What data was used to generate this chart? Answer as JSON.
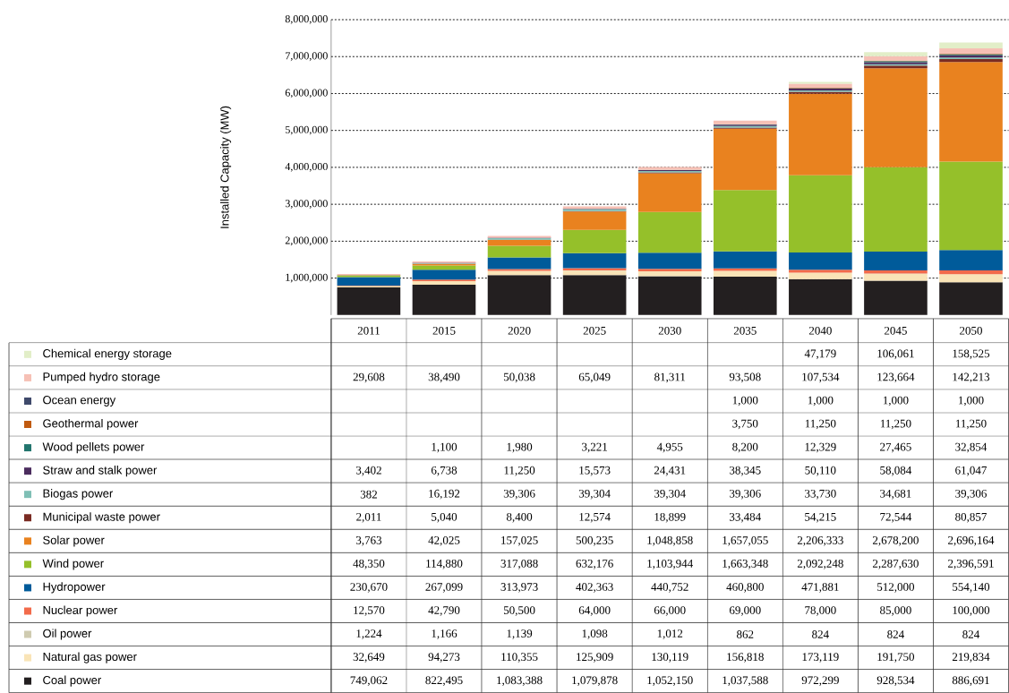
{
  "chart_data": {
    "type": "bar",
    "stacked": true,
    "ylabel": "Installed Capacity (MW)",
    "categories": [
      "2011",
      "2015",
      "2020",
      "2025",
      "2030",
      "2035",
      "2040",
      "2045",
      "2050"
    ],
    "ylim": [
      0,
      8000000
    ],
    "yticks": [
      {
        "value": 1000000,
        "label": "1,000,000"
      },
      {
        "value": 2000000,
        "label": "2,000,000"
      },
      {
        "value": 3000000,
        "label": "3,000,000"
      },
      {
        "value": 4000000,
        "label": "4,000,000"
      },
      {
        "value": 5000000,
        "label": "5,000,000"
      },
      {
        "value": 6000000,
        "label": "6,000,000"
      },
      {
        "value": 7000000,
        "label": "7,000,000"
      },
      {
        "value": 8000000,
        "label": "8,000,000"
      }
    ],
    "grid": "y",
    "legend": "bottom",
    "series": [
      {
        "name": "Coal power",
        "color": "#231f20",
        "values": [
          749062,
          822495,
          1083388,
          1079878,
          1052150,
          1037588,
          972299,
          928534,
          886691
        ],
        "value_labels": [
          "749,062",
          "822,495",
          "1,083,388",
          "1,079,878",
          "1,052,150",
          "1,037,588",
          "972,299",
          "928,534",
          "886,691"
        ]
      },
      {
        "name": "Natural gas power",
        "color": "#f9e4b7",
        "values": [
          32649,
          94273,
          110355,
          125909,
          130119,
          156818,
          173119,
          191750,
          219834
        ],
        "value_labels": [
          "32,649",
          "94,273",
          "110,355",
          "125,909",
          "130,119",
          "156,818",
          "173,119",
          "191,750",
          "219,834"
        ]
      },
      {
        "name": "Oil power",
        "color": "#cfcbb0",
        "values": [
          1224,
          1166,
          1139,
          1098,
          1012,
          862,
          824,
          824,
          824
        ],
        "value_labels": [
          "1,224",
          "1,166",
          "1,139",
          "1,098",
          "1,012",
          "862",
          "824",
          "824",
          "824"
        ]
      },
      {
        "name": "Nuclear power",
        "color": "#f26b4b",
        "values": [
          12570,
          42790,
          50500,
          64000,
          66000,
          69000,
          78000,
          85000,
          100000
        ],
        "value_labels": [
          "12,570",
          "42,790",
          "50,500",
          "64,000",
          "66,000",
          "69,000",
          "78,000",
          "85,000",
          "100,000"
        ]
      },
      {
        "name": "Hydropower",
        "color": "#005b9a",
        "values": [
          230670,
          267099,
          313973,
          402363,
          440752,
          460800,
          471881,
          512000,
          554140
        ],
        "value_labels": [
          "230,670",
          "267,099",
          "313,973",
          "402,363",
          "440,752",
          "460,800",
          "471,881",
          "512,000",
          "554,140"
        ]
      },
      {
        "name": "Wind power",
        "color": "#95c02a",
        "values": [
          48350,
          114880,
          317088,
          632176,
          1103944,
          1663348,
          2092248,
          2287630,
          2396591
        ],
        "value_labels": [
          "48,350",
          "114,880",
          "317,088",
          "632,176",
          "1,103,944",
          "1,663,348",
          "2,092,248",
          "2,287,630",
          "2,396,591"
        ]
      },
      {
        "name": "Solar power",
        "color": "#e9821f",
        "values": [
          3763,
          42025,
          157025,
          500235,
          1048858,
          1657055,
          2206333,
          2678200,
          2696164
        ],
        "value_labels": [
          "3,763",
          "42,025",
          "157,025",
          "500,235",
          "1,048,858",
          "1,657,055",
          "2,206,333",
          "2,678,200",
          "2,696,164"
        ]
      },
      {
        "name": "Municipal waste  power",
        "color": "#7a2b22",
        "values": [
          2011,
          5040,
          8400,
          12574,
          18899,
          33484,
          54215,
          72544,
          80857
        ],
        "value_labels": [
          "2,011",
          "5,040",
          "8,400",
          "12,574",
          "18,899",
          "33,484",
          "54,215",
          "72,544",
          "80,857"
        ]
      },
      {
        "name": "Biogas power",
        "color": "#7fbfb5",
        "values": [
          382,
          16192,
          39306,
          39304,
          39304,
          39306,
          33730,
          34681,
          39306
        ],
        "value_labels": [
          "382",
          "16,192",
          "39,306",
          "39,304",
          "39,304",
          "39,306",
          "33,730",
          "34,681",
          "39,306"
        ]
      },
      {
        "name": "Straw and stalk power",
        "color": "#4b2c5e",
        "values": [
          3402,
          6738,
          11250,
          15573,
          24431,
          38345,
          50110,
          58084,
          61047
        ],
        "value_labels": [
          "3,402",
          "6,738",
          "11,250",
          "15,573",
          "24,431",
          "38,345",
          "50,110",
          "58,084",
          "61,047"
        ]
      },
      {
        "name": "Wood pellets power",
        "color": "#22756e",
        "values": [
          null,
          1100,
          1980,
          3221,
          4955,
          8200,
          12329,
          27465,
          32854
        ],
        "value_labels": [
          null,
          "1,100",
          "1,980",
          "3,221",
          "4,955",
          "8,200",
          "12,329",
          "27,465",
          "32,854"
        ]
      },
      {
        "name": "Geothermal power",
        "color": "#c05a10",
        "values": [
          null,
          null,
          null,
          null,
          null,
          3750,
          11250,
          11250,
          11250
        ],
        "value_labels": [
          null,
          null,
          null,
          null,
          null,
          "3,750",
          "11,250",
          "11,250",
          "11,250"
        ]
      },
      {
        "name": "Ocean energy",
        "color": "#3f4a6b",
        "values": [
          null,
          null,
          null,
          null,
          null,
          1000,
          1000,
          1000,
          1000
        ],
        "value_labels": [
          null,
          null,
          null,
          null,
          null,
          "1,000",
          "1,000",
          "1,000",
          "1,000"
        ]
      },
      {
        "name": "Pumped hydro storage",
        "color": "#f6c0b5",
        "values": [
          29608,
          38490,
          50038,
          65049,
          81311,
          93508,
          107534,
          123664,
          142213
        ],
        "value_labels": [
          "29,608",
          "38,490",
          "50,038",
          "65,049",
          "81,311",
          "93,508",
          "107,534",
          "123,664",
          "142,213"
        ]
      },
      {
        "name": "Chemical energy storage",
        "color": "#e2eec8",
        "values": [
          null,
          null,
          null,
          null,
          null,
          null,
          47179,
          106061,
          158525
        ],
        "value_labels": [
          null,
          null,
          null,
          null,
          null,
          null,
          "47,179",
          "106,061",
          "158,525"
        ]
      }
    ]
  }
}
